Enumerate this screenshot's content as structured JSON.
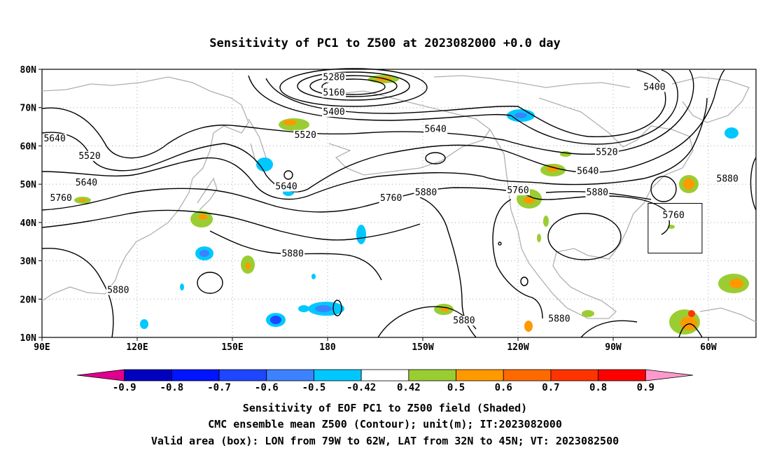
{
  "title": "Sensitivity of PC1 to Z500 at 2023082000 +0.0 day",
  "map": {
    "lat_ticks": [
      "80N",
      "70N",
      "60N",
      "50N",
      "40N",
      "30N",
      "20N",
      "10N"
    ],
    "lon_ticks": [
      "90E",
      "120E",
      "150E",
      "180",
      "150W",
      "120W",
      "90W",
      "60W"
    ],
    "lon_range_deg_east": [
      90,
      315
    ],
    "lat_range_deg_north": [
      10,
      80
    ],
    "contour_labels": [
      {
        "text": "5280",
        "lon": 182,
        "lat": 77.5
      },
      {
        "text": "5160",
        "lon": 182,
        "lat": 73.5
      },
      {
        "text": "5400",
        "lon": 182,
        "lat": 68.5
      },
      {
        "text": "5520",
        "lon": 173,
        "lat": 62.5
      },
      {
        "text": "5640",
        "lon": 94,
        "lat": 61.5
      },
      {
        "text": "5520",
        "lon": 105,
        "lat": 57
      },
      {
        "text": "5640",
        "lon": 104,
        "lat": 50
      },
      {
        "text": "5760",
        "lon": 96,
        "lat": 46
      },
      {
        "text": "5640",
        "lon": 167,
        "lat": 49
      },
      {
        "text": "5640",
        "lon": 214,
        "lat": 64
      },
      {
        "text": "5400",
        "lon": 283,
        "lat": 75
      },
      {
        "text": "5520",
        "lon": 268,
        "lat": 58
      },
      {
        "text": "5640",
        "lon": 262,
        "lat": 53
      },
      {
        "text": "5760",
        "lon": 200,
        "lat": 46
      },
      {
        "text": "5880",
        "lon": 211,
        "lat": 47.5
      },
      {
        "text": "5760",
        "lon": 240,
        "lat": 48
      },
      {
        "text": "5880",
        "lon": 265,
        "lat": 47.5
      },
      {
        "text": "5760",
        "lon": 289,
        "lat": 41.5
      },
      {
        "text": "5880",
        "lon": 306,
        "lat": 51
      },
      {
        "text": "5880",
        "lon": 169,
        "lat": 31.5
      },
      {
        "text": "5880",
        "lon": 114,
        "lat": 22
      },
      {
        "text": "5880",
        "lon": 223,
        "lat": 14
      },
      {
        "text": "5880",
        "lon": 253,
        "lat": 14.5
      }
    ],
    "valid_box": {
      "lon_west": -79,
      "lon_east": -62,
      "lat_south": 32,
      "lat_north": 45
    },
    "grid": "dotted"
  },
  "colorbar": {
    "labels": [
      "-0.9",
      "-0.8",
      "-0.7",
      "-0.6",
      "-0.5",
      "-0.42",
      "0.42",
      "0.5",
      "0.6",
      "0.7",
      "0.8",
      "0.9"
    ],
    "colors": [
      "#e0008f",
      "#0000bf",
      "#0014ff",
      "#1e46ff",
      "#3c82ff",
      "#00c8ff",
      "#ffffff",
      "#9acd32",
      "#ff9900",
      "#ff6a00",
      "#ff3300",
      "#ff0000",
      "#ff99cc"
    ]
  },
  "caption": {
    "line1": "Sensitivity of EOF PC1 to Z500 field (Shaded)",
    "line2": "CMC ensemble mean Z500 (Contour); unit(m); IT:2023082000",
    "line3": "Valid area (box): LON from 79W to 62W, LAT from 32N to 45N; VT: 2023082500"
  }
}
